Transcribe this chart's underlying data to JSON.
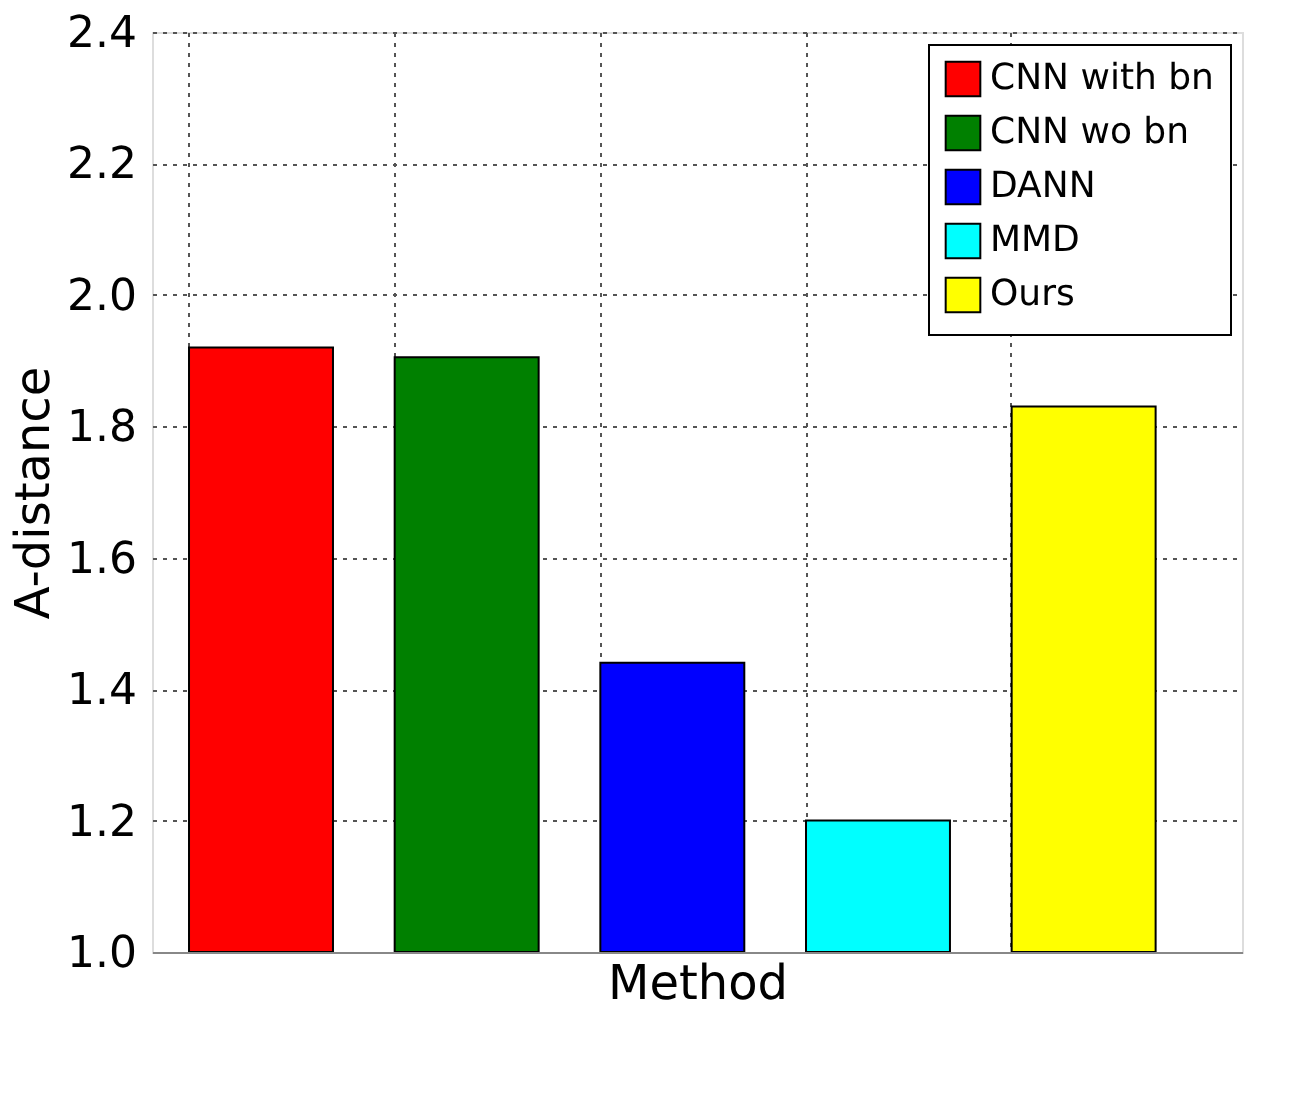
{
  "chart_data": {
    "type": "bar",
    "xlabel": "Method",
    "ylabel": "A-distance",
    "categories": [
      null,
      null,
      null,
      null,
      null
    ],
    "series": [
      {
        "name": "CNN with bn",
        "color": "#ff0000",
        "values": [
          1.92,
          null,
          null,
          null,
          null
        ]
      },
      {
        "name": "CNN wo bn",
        "color": "#008000",
        "values": [
          null,
          1.905,
          null,
          null,
          null
        ]
      },
      {
        "name": "DANN",
        "color": "#0000ff",
        "values": [
          null,
          null,
          1.44,
          null,
          null
        ]
      },
      {
        "name": "MMD",
        "color": "#00ffff",
        "values": [
          null,
          null,
          null,
          1.2,
          null
        ]
      },
      {
        "name": "Ours",
        "color": "#ffff00",
        "values": [
          null,
          null,
          null,
          null,
          1.83
        ]
      }
    ],
    "ylim": [
      1.0,
      2.4
    ],
    "yticks": [
      {
        "value": 1,
        "label": "1.0"
      },
      1.2,
      1.4,
      1.6,
      1.8,
      {
        "value": 2,
        "label": "2.0"
      },
      2.2,
      2.4
    ],
    "grid": true,
    "legend": "top right",
    "tick_labels": "y"
  }
}
